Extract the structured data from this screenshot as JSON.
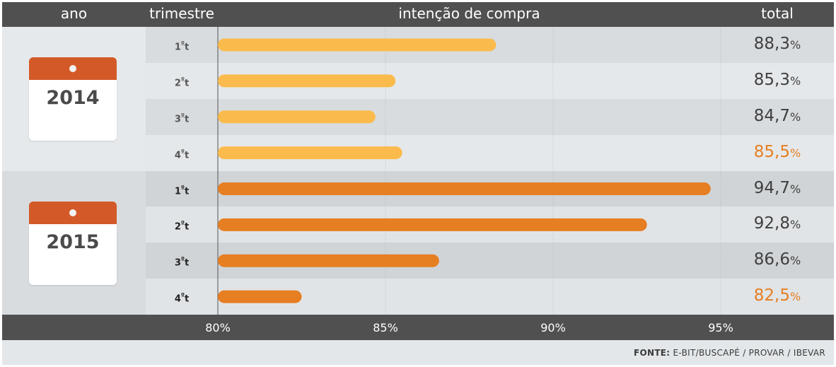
{
  "header": {
    "ano": "ano",
    "trimestre": "trimestre",
    "title": "intenção de compra",
    "total": "total"
  },
  "years": [
    "2014",
    "2015"
  ],
  "quarters": [
    {
      "label": "1",
      "suffix": "º",
      "unit": "t",
      "year": "2014",
      "total": "88,3",
      "pct": "%"
    },
    {
      "label": "2",
      "suffix": "º",
      "unit": "t",
      "year": "2014",
      "total": "85,3",
      "pct": "%"
    },
    {
      "label": "3",
      "suffix": "º",
      "unit": "t",
      "year": "2014",
      "total": "84,7",
      "pct": "%"
    },
    {
      "label": "4",
      "suffix": "º",
      "unit": "t",
      "year": "2014",
      "total": "85,5",
      "pct": "%"
    },
    {
      "label": "1",
      "suffix": "º",
      "unit": "t",
      "year": "2015",
      "total": "94,7",
      "pct": "%"
    },
    {
      "label": "2",
      "suffix": "º",
      "unit": "t",
      "year": "2015",
      "total": "92,8",
      "pct": "%"
    },
    {
      "label": "3",
      "suffix": "º",
      "unit": "t",
      "year": "2015",
      "total": "86,6",
      "pct": "%"
    },
    {
      "label": "4",
      "suffix": "º",
      "unit": "t",
      "year": "2015",
      "total": "82,5",
      "pct": "%"
    }
  ],
  "chart_data": {
    "type": "bar",
    "orientation": "horizontal",
    "title": "intenção de compra",
    "categories": [
      "2014 1ºt",
      "2014 2ºt",
      "2014 3ºt",
      "2014 4ºt",
      "2015 1ºt",
      "2015 2ºt",
      "2015 3ºt",
      "2015 4ºt"
    ],
    "values": [
      88.3,
      85.3,
      84.7,
      85.5,
      94.7,
      92.8,
      86.6,
      82.5
    ],
    "xlim": [
      80,
      95
    ],
    "xticks": [
      "80%",
      "85%",
      "90%",
      "95%"
    ],
    "xtick_values": [
      80,
      85,
      90,
      95
    ],
    "grid": true,
    "colors": {
      "2014": "#fbbb4c",
      "2015": "#e67e22"
    }
  },
  "colors": {
    "header": "#505050",
    "calendar_top": "#d35a28",
    "bar_2014": "#fbbb4c",
    "bar_2015": "#e67e22",
    "highlight_text": "#e67e22"
  },
  "source": {
    "label": "FONTE:",
    "text": "E-BIT/BUSCAPÉ / PROVAR / IBEVAR"
  }
}
